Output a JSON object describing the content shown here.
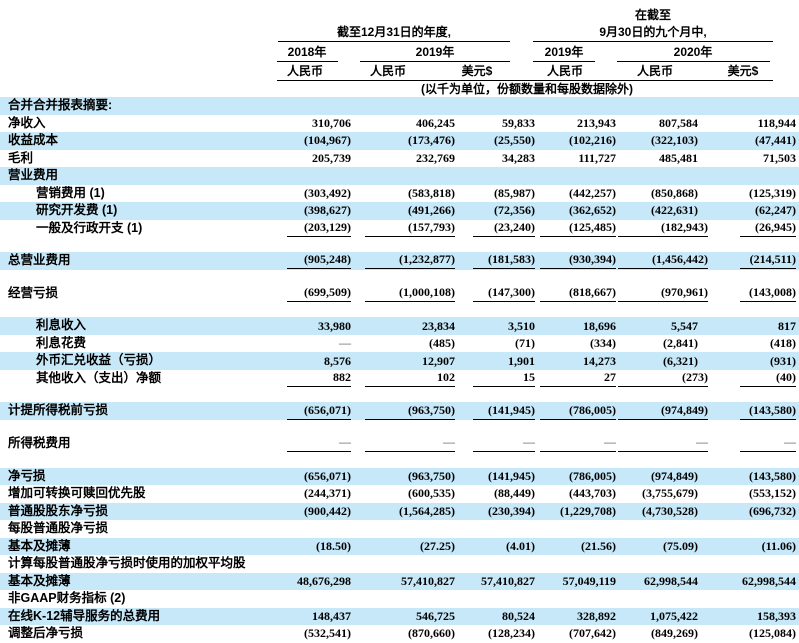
{
  "header": {
    "period1_title": "截至12月31日的年度,",
    "period2_pretitle": "在截至",
    "period2_title": "9月30日的九个月中,",
    "years": [
      "2018年",
      "2019年",
      "2019年",
      "2020年"
    ],
    "currencies": [
      "人民币",
      "人民币",
      "美元$",
      "人民币",
      "人民币",
      "美元$"
    ],
    "unit_note": "(以千为单位，份额数量和每股数据除外)"
  },
  "colors": {
    "highlight": "#c6e8f8",
    "rule": "#000000",
    "dash_text": "#777777"
  },
  "table": {
    "rows": [
      {
        "label": "合并合并报表摘要:",
        "hl": true,
        "vals": []
      },
      {
        "label": "净收入",
        "vals": [
          "310,706",
          "406,245",
          "59,833",
          "213,943",
          "807,584",
          "118,944"
        ]
      },
      {
        "label": "收益成本",
        "hl": true,
        "vals": [
          "(104,967)",
          "(173,476)",
          "(25,550)",
          "(102,216)",
          "(322,103)",
          "(47,441)"
        ]
      },
      {
        "label": "毛利",
        "vals": [
          "205,739",
          "232,769",
          "34,283",
          "111,727",
          "485,481",
          "71,503"
        ]
      },
      {
        "label": "营业费用",
        "hl": true,
        "vals": []
      },
      {
        "label": "营销费用 (1)",
        "ind": true,
        "vals": [
          "(303,492)",
          "(583,818)",
          "(85,987)",
          "(442,257)",
          "(850,868)",
          "(125,319)"
        ]
      },
      {
        "label": "研究开发费 (1)",
        "ind": true,
        "hl": true,
        "vals": [
          "(398,627)",
          "(491,266)",
          "(72,356)",
          "(362,652)",
          "(422,631)",
          "(62,247)"
        ]
      },
      {
        "label": "一般及行政开支 (1)",
        "ind": true,
        "ul": true,
        "vals": [
          "(203,129)",
          "(157,793)",
          "(23,240)",
          "(125,485)",
          "(182,943)",
          "(26,945)"
        ]
      },
      {
        "label": "总营业费用",
        "hl": true,
        "ul": true,
        "sp": true,
        "vals": [
          "(905,248)",
          "(1,232,877)",
          "(181,583)",
          "(930,394)",
          "(1,456,442)",
          "(214,511)"
        ]
      },
      {
        "label": "经营亏损",
        "ul": true,
        "sp": true,
        "vals": [
          "(699,509)",
          "(1,000,108)",
          "(147,300)",
          "(818,667)",
          "(970,961)",
          "(143,008)"
        ]
      },
      {
        "label": "利息收入",
        "ind": true,
        "hl": true,
        "sp": true,
        "vals": [
          "33,980",
          "23,834",
          "3,510",
          "18,696",
          "5,547",
          "817"
        ]
      },
      {
        "label": "利息花费",
        "ind": true,
        "vals": [
          "—",
          "(485)",
          "(71)",
          "(334)",
          "(2,841)",
          "(418)"
        ]
      },
      {
        "label": "外币汇兑收益（亏损）",
        "ind": true,
        "hl": true,
        "vals": [
          "8,576",
          "12,907",
          "1,901",
          "14,273",
          "(6,321)",
          "(931)"
        ]
      },
      {
        "label": "其他收入（支出）净额",
        "ind": true,
        "ul": true,
        "vals": [
          "882",
          "102",
          "15",
          "27",
          "(273)",
          "(40)"
        ]
      },
      {
        "label": "计提所得税前亏损",
        "hl": true,
        "ul": true,
        "sp": true,
        "vals": [
          "(656,071)",
          "(963,750)",
          "(141,945)",
          "(786,005)",
          "(974,849)",
          "(143,580)"
        ]
      },
      {
        "label": "所得税费用",
        "ul": true,
        "sp": true,
        "vals": [
          "—",
          "—",
          "—",
          "—",
          "—",
          "—"
        ]
      },
      {
        "label": "净亏损",
        "hl": true,
        "sp": true,
        "vals": [
          "(656,071)",
          "(963,750)",
          "(141,945)",
          "(786,005)",
          "(974,849)",
          "(143,580)"
        ]
      },
      {
        "label": "增加可转换可赎回优先股",
        "vals": [
          "(244,371)",
          "(600,535)",
          "(88,449)",
          "(443,703)",
          "(3,755,679)",
          "(553,152)"
        ]
      },
      {
        "label": "普通股股东净亏损",
        "hl": true,
        "vals": [
          "(900,442)",
          "(1,564,285)",
          "(230,394)",
          "(1,229,708)",
          "(4,730,528)",
          "(696,732)"
        ]
      },
      {
        "label": "每股普通股净亏损",
        "vals": []
      },
      {
        "label": "基本及摊薄",
        "hl": true,
        "vals": [
          "(18.50)",
          "(27.25)",
          "(4.01)",
          "(21.56)",
          "(75.09)",
          "(11.06)"
        ]
      },
      {
        "label": "计算每股普通股净亏损时使用的加权平均股",
        "vals": []
      },
      {
        "label": "基本及摊薄",
        "hl": true,
        "vals": [
          "48,676,298",
          "57,410,827",
          "57,410,827",
          "57,049,119",
          "62,998,544",
          "62,998,544"
        ]
      },
      {
        "label": "非GAAP财务指标 (2)",
        "vals": []
      },
      {
        "label": "在线K-12辅导服务的总费用",
        "hl": true,
        "vals": [
          "148,437",
          "546,725",
          "80,524",
          "328,892",
          "1,075,422",
          "158,393"
        ]
      },
      {
        "label": "调整后净亏损",
        "vals": [
          "(532,541)",
          "(870,660)",
          "(128,234)",
          "(707,642)",
          "(849,269)",
          "(125,084)"
        ]
      }
    ]
  }
}
